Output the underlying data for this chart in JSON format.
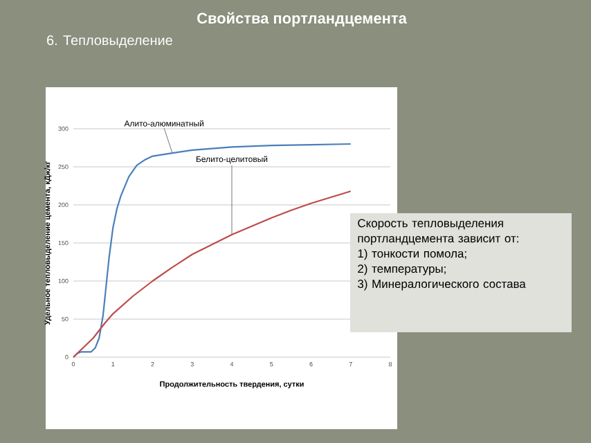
{
  "chart_data": {
    "type": "line",
    "title": "Свойства портландцемента",
    "subtitle": "6. Тепловыделение",
    "xlabel": "Продолжительность твердения, сутки",
    "ylabel": "Удельное тепловыделение цемента, кДж/кг",
    "xlim": [
      0,
      8
    ],
    "xticks": [
      0,
      1,
      2,
      3,
      4,
      5,
      6,
      7,
      8
    ],
    "ylim": [
      0,
      300
    ],
    "yticks": [
      0,
      50,
      100,
      150,
      200,
      250,
      300
    ],
    "grid": "y",
    "series": [
      {
        "name": "Алито-алюминатный",
        "color": "#4a7ebb",
        "x": [
          0,
          0.1,
          0.2,
          0.45,
          0.55,
          0.65,
          0.75,
          0.8,
          0.9,
          1.0,
          1.1,
          1.2,
          1.4,
          1.6,
          1.8,
          2,
          2.5,
          3,
          4,
          5,
          6,
          7
        ],
        "values": [
          0,
          5,
          7,
          7,
          12,
          25,
          55,
          80,
          130,
          170,
          195,
          212,
          237,
          252,
          259,
          264,
          268,
          272,
          276,
          278,
          279,
          280
        ]
      },
      {
        "name": "Белито-целитовый",
        "color": "#be4b48",
        "x": [
          0,
          0.5,
          0.8,
          1,
          1.5,
          2,
          2.5,
          3,
          3.5,
          4,
          4.5,
          5,
          5.5,
          6,
          6.5,
          7
        ],
        "values": [
          0,
          25,
          45,
          57,
          80,
          100,
          118,
          135,
          148,
          161,
          172,
          183,
          193,
          202,
          210,
          218
        ]
      }
    ],
    "annotations": [
      "Скорость тепловыделения портландцемента зависит от:",
      "1) тонкости помола;",
      "2) температуры;",
      "3) Минералогического состава"
    ]
  }
}
